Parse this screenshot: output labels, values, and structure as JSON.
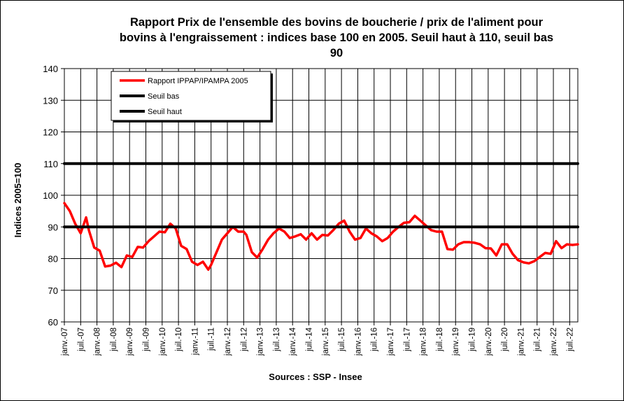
{
  "chart_data": {
    "type": "line",
    "title": "Rapport Prix de l'ensemble des bovins de boucherie / prix de l'aliment pour bovins à l'engraissement : indices base 100 en 2005. Seuil haut à 110, seuil bas 90",
    "title_lines": [
      "Rapport Prix de l'ensemble des bovins de boucherie / prix de l'aliment pour",
      "bovins à l'engraissement : indices base 100 en 2005. Seuil haut à 110, seuil bas",
      "90"
    ],
    "ylabel": "Indices 2005=100",
    "source": "Sources : SSP - Insee",
    "ylim": [
      60,
      140
    ],
    "yticks": [
      "60",
      "70",
      "80",
      "90",
      "100",
      "110",
      "120",
      "130",
      "140"
    ],
    "xlim": [
      "2007-01",
      "2022-10"
    ],
    "xticks": [
      "janv.-07",
      "juil.-07",
      "janv.-08",
      "juil.-08",
      "janv.-09",
      "juil.-09",
      "janv.-10",
      "juil.-10",
      "janv.-11",
      "juil.-11",
      "janv.-12",
      "juil.-12",
      "janv.-13",
      "juil.-13",
      "janv.-14",
      "juil.-14",
      "janv.-15",
      "juil.-15",
      "janv.-16",
      "juil.-16",
      "janv.-17",
      "juil.-17",
      "janv.-18",
      "juil.-18",
      "janv.-19",
      "juil.-19",
      "janv.-20",
      "juil.-20",
      "janv.-21",
      "juil.-21",
      "janv.-22",
      "juil.-22"
    ],
    "grid": true,
    "legend": [
      {
        "name": "Rapport IPPAP/IPAMPA 2005",
        "color": "#ff0000"
      },
      {
        "name": "Seuil bas",
        "color": "#000000"
      },
      {
        "name": "Seuil haut",
        "color": "#000000"
      }
    ],
    "series": [
      {
        "name": "Rapport IPPAP/IPAMPA 2005",
        "color": "#ff0000",
        "x": [
          "2007-01",
          "2007-03",
          "2007-05",
          "2007-07",
          "2007-09",
          "2007-10",
          "2007-12",
          "2008-02",
          "2008-04",
          "2008-06",
          "2008-08",
          "2008-10",
          "2008-12",
          "2009-02",
          "2009-04",
          "2009-06",
          "2009-08",
          "2009-10",
          "2009-12",
          "2010-02",
          "2010-04",
          "2010-06",
          "2010-08",
          "2010-10",
          "2010-12",
          "2011-02",
          "2011-04",
          "2011-06",
          "2011-07",
          "2011-09",
          "2011-11",
          "2012-01",
          "2012-03",
          "2012-05",
          "2012-07",
          "2012-08",
          "2012-10",
          "2012-12",
          "2013-02",
          "2013-04",
          "2013-06",
          "2013-08",
          "2013-10",
          "2013-12",
          "2014-02",
          "2014-04",
          "2014-06",
          "2014-08",
          "2014-10",
          "2014-12",
          "2015-02",
          "2015-04",
          "2015-06",
          "2015-08",
          "2015-10",
          "2015-12",
          "2016-02",
          "2016-04",
          "2016-06",
          "2016-08",
          "2016-10",
          "2016-12",
          "2017-02",
          "2017-04",
          "2017-06",
          "2017-08",
          "2017-10",
          "2017-12",
          "2018-02",
          "2018-04",
          "2018-06",
          "2018-08",
          "2018-10",
          "2018-12",
          "2019-02",
          "2019-04",
          "2019-06",
          "2019-08",
          "2019-10",
          "2019-12",
          "2020-02",
          "2020-04",
          "2020-06",
          "2020-08",
          "2020-10",
          "2020-12",
          "2021-02",
          "2021-04",
          "2021-06",
          "2021-08",
          "2021-10",
          "2021-12",
          "2022-02",
          "2022-04",
          "2022-06",
          "2022-08",
          "2022-10"
        ],
        "values": [
          97.5,
          95,
          91,
          88,
          93,
          89,
          83.5,
          82.5,
          77.5,
          77.8,
          78.7,
          77.3,
          81,
          80.5,
          83.7,
          83.5,
          85.5,
          87,
          88.5,
          88.3,
          91,
          89.5,
          84,
          83,
          79,
          78,
          79,
          76.5,
          78,
          82,
          86,
          88,
          90,
          88.5,
          88.5,
          87.5,
          82,
          80.3,
          83,
          86,
          88,
          89.5,
          88.5,
          86.5,
          87,
          87.7,
          86,
          88,
          86,
          87.5,
          87.3,
          89,
          91,
          92,
          88.5,
          86,
          86.5,
          89.5,
          88,
          87,
          85.5,
          86.5,
          88.5,
          90,
          91.3,
          91.5,
          93.5,
          92,
          90.5,
          89,
          88.5,
          88.5,
          83,
          82.8,
          84.5,
          85.2,
          85.2,
          85,
          84.5,
          83.3,
          83.2,
          81,
          84.5,
          84.5,
          81.5,
          79.5,
          78.8,
          78.5,
          79.2,
          80.5,
          81.8,
          81.5,
          85.5,
          83.3,
          84.5,
          84.3,
          84.5
        ]
      },
      {
        "name": "Seuil bas",
        "color": "#000000",
        "x": [
          "2007-01",
          "2022-10"
        ],
        "values": [
          90,
          90
        ]
      },
      {
        "name": "Seuil haut",
        "color": "#000000",
        "x": [
          "2007-01",
          "2022-10"
        ],
        "values": [
          110,
          110
        ]
      }
    ]
  }
}
